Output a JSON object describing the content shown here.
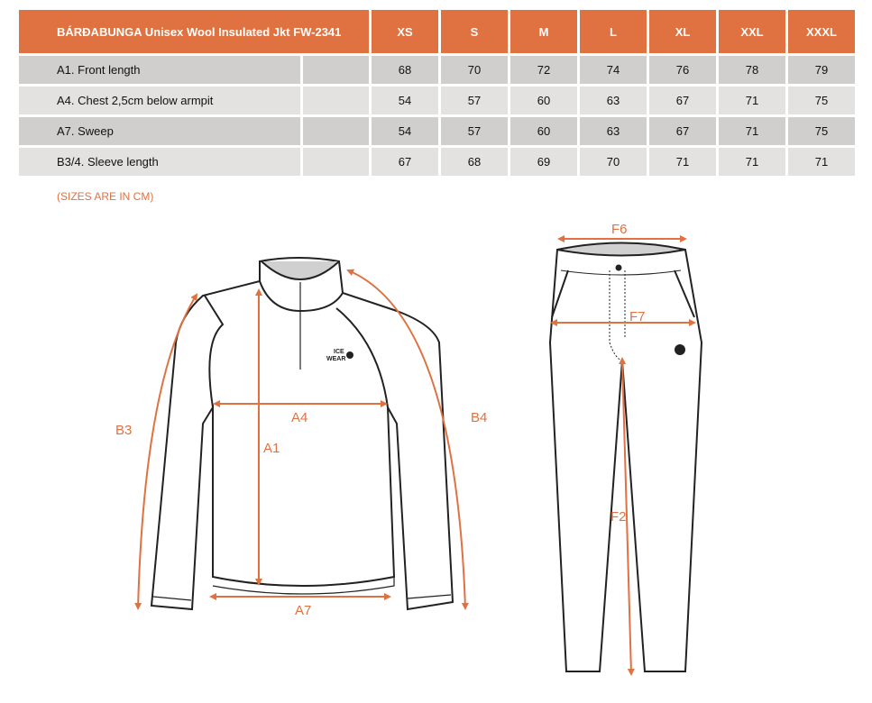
{
  "table": {
    "title": "BÁRÐABUNGA Unisex Wool Insulated Jkt FW-2341",
    "sizes": [
      "XS",
      "S",
      "M",
      "L",
      "XL",
      "XXL",
      "XXXL"
    ],
    "rows": [
      {
        "label": "A1. Front length",
        "values": [
          "68",
          "70",
          "72",
          "74",
          "76",
          "78",
          "79"
        ]
      },
      {
        "label": "A4. Chest 2,5cm below armpit",
        "values": [
          "54",
          "57",
          "60",
          "63",
          "67",
          "71",
          "75"
        ]
      },
      {
        "label": "A7. Sweep",
        "values": [
          "54",
          "57",
          "60",
          "63",
          "67",
          "71",
          "75"
        ]
      },
      {
        "label": "B3/4. Sleeve length",
        "values": [
          "67",
          "68",
          "69",
          "70",
          "71",
          "71",
          "71"
        ]
      }
    ]
  },
  "note": "(SIZES ARE IN CM)",
  "diagram": {
    "labels": {
      "a1": "A1",
      "a4": "A4",
      "a7": "A7",
      "b3": "B3",
      "b4": "B4",
      "f2": "F2",
      "f6": "F6",
      "f7": "F7"
    },
    "logo": "ICE WEAR",
    "accent": "#e07140"
  }
}
